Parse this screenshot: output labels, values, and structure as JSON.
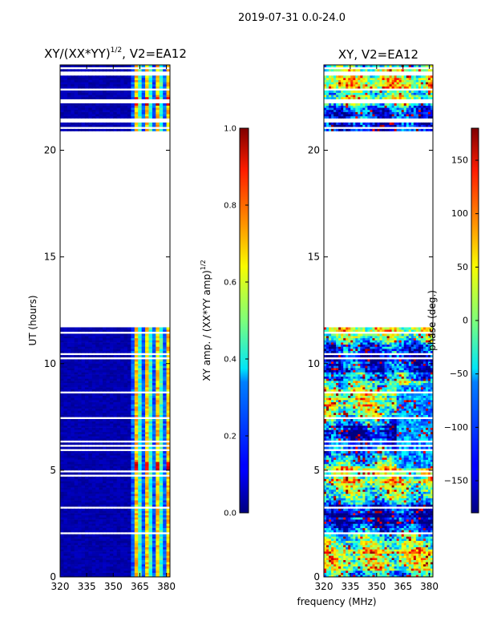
{
  "figure": {
    "suptitle": "2019-07-31 0.0-24.0",
    "xlabel_shared": "frequency (MHz)"
  },
  "chart_data": [
    {
      "type": "heatmap",
      "title_main": "XY/(XX*YY)",
      "title_sup": "1/2",
      "title_tail": ", V2=EA12",
      "xlabel": "",
      "ylabel": "UT (hours)",
      "xlim": [
        320,
        382
      ],
      "ylim": [
        0,
        24
      ],
      "xticks": [
        320,
        335,
        350,
        365,
        380
      ],
      "yticks": [
        0,
        5,
        10,
        15,
        20
      ],
      "x_tick_labels": [
        "320",
        "335",
        "350",
        "365",
        "380"
      ],
      "y_tick_labels": [
        "0",
        "5",
        "10",
        "15",
        "20"
      ],
      "data_gap_hours": [
        11.7,
        20.9
      ],
      "colorbar": {
        "label_main": "XY amp. / (XX*YY amp)",
        "label_sup": "1/2",
        "range": [
          0.0,
          1.0
        ],
        "ticks": [
          0.0,
          0.2,
          0.4,
          0.6,
          0.8,
          1.0
        ],
        "tick_labels": [
          "0.0",
          "0.2",
          "0.4",
          "0.6",
          "0.8",
          "1.0"
        ],
        "colormap": "jet"
      }
    },
    {
      "type": "heatmap",
      "title": "XY, V2=EA12",
      "xlabel": "frequency (MHz)",
      "ylabel": "",
      "xlim": [
        320,
        382
      ],
      "ylim": [
        0,
        24
      ],
      "xticks": [
        320,
        335,
        350,
        365,
        380
      ],
      "yticks": [
        0,
        5,
        10,
        15,
        20
      ],
      "x_tick_labels": [
        "320",
        "335",
        "350",
        "365",
        "380"
      ],
      "y_tick_labels": [
        "0",
        "5",
        "10",
        "15",
        "20"
      ],
      "data_gap_hours": [
        11.7,
        20.9
      ],
      "colorbar": {
        "label": "phase (deg.)",
        "range": [
          -180,
          180
        ],
        "ticks": [
          -150,
          -100,
          -50,
          0,
          50,
          100,
          150
        ],
        "tick_labels": [
          "−150",
          "−100",
          "−50",
          "0",
          "50",
          "100",
          "150"
        ],
        "colormap": "jet"
      }
    }
  ],
  "colors": {
    "axis": "#000000",
    "background": "#ffffff",
    "jet_low": "#00007f",
    "jet_high": "#7f0000"
  }
}
